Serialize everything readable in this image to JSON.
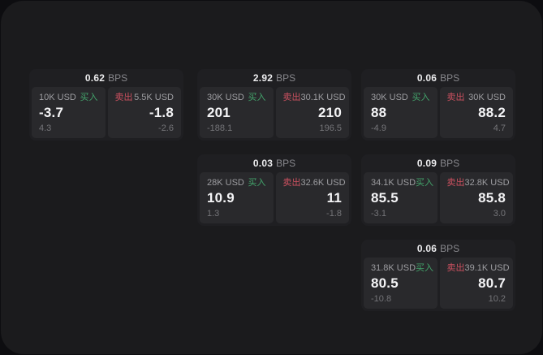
{
  "labels": {
    "bps_unit": "BPS",
    "buy": "买入",
    "sell": "卖出"
  },
  "colors": {
    "page_bg": "#0d0d10",
    "canvas_bg": "#1b1b1d",
    "card_bg": "#1f1f22",
    "tile_bg": "#29292c",
    "buy_green": "#43a46b",
    "sell_red": "#cd5160",
    "primary_text": "#f4f4f6",
    "muted_text": "#747478"
  },
  "cards": [
    {
      "bps": "0.62",
      "grid": {
        "col": 1,
        "row": 1
      },
      "buy": {
        "amount": "10K USD",
        "price": "-3.7",
        "delta": "4.3"
      },
      "sell": {
        "amount": "5.5K USD",
        "price": "-1.8",
        "delta": "-2.6"
      }
    },
    {
      "bps": "2.92",
      "grid": {
        "col": 2,
        "row": 1
      },
      "buy": {
        "amount": "30K USD",
        "price": "201",
        "delta": "-188.1"
      },
      "sell": {
        "amount": "30.1K USD",
        "price": "210",
        "delta": "196.5"
      }
    },
    {
      "bps": "0.06",
      "grid": {
        "col": 3,
        "row": 1
      },
      "buy": {
        "amount": "30K USD",
        "price": "88",
        "delta": "-4.9"
      },
      "sell": {
        "amount": "30K USD",
        "price": "88.2",
        "delta": "4.7"
      }
    },
    {
      "bps": "0.03",
      "grid": {
        "col": 2,
        "row": 2
      },
      "buy": {
        "amount": "28K USD",
        "price": "10.9",
        "delta": "1.3"
      },
      "sell": {
        "amount": "32.6K USD",
        "price": "11",
        "delta": "-1.8"
      }
    },
    {
      "bps": "0.09",
      "grid": {
        "col": 3,
        "row": 2
      },
      "buy": {
        "amount": "34.1K USD",
        "price": "85.5",
        "delta": "-3.1"
      },
      "sell": {
        "amount": "32.8K USD",
        "price": "85.8",
        "delta": "3.0"
      }
    },
    {
      "bps": "0.06",
      "grid": {
        "col": 3,
        "row": 3
      },
      "buy": {
        "amount": "31.8K USD",
        "price": "80.5",
        "delta": "-10.8"
      },
      "sell": {
        "amount": "39.1K USD",
        "price": "80.7",
        "delta": "10.2"
      }
    }
  ]
}
